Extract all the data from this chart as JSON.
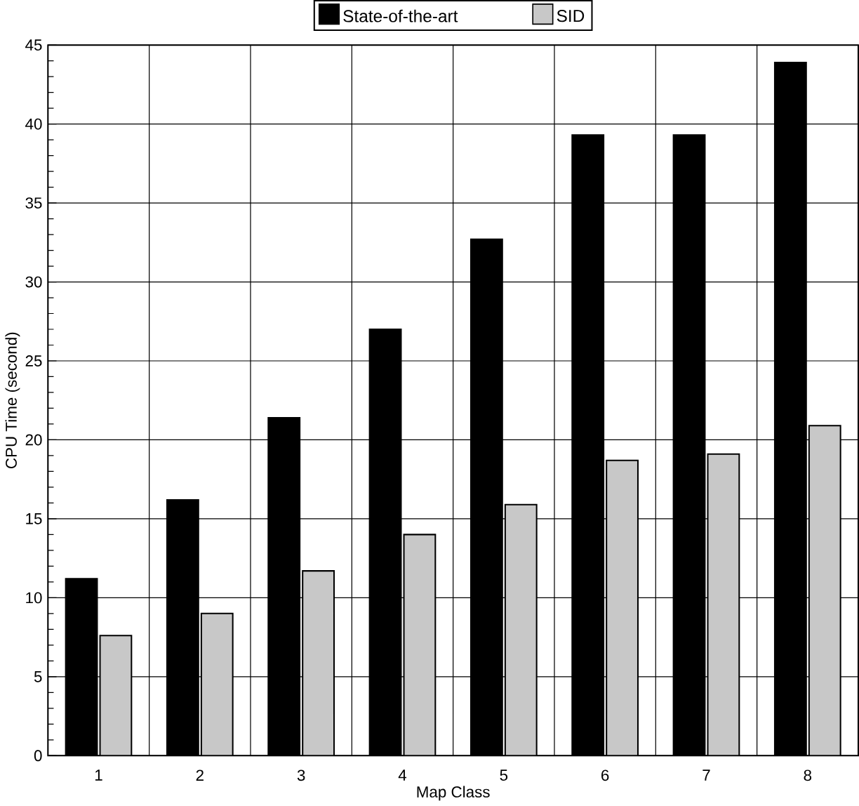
{
  "chart_data": {
    "type": "bar",
    "xlabel": "Map Class",
    "ylabel": "CPU Time (second)",
    "categories": [
      "1",
      "2",
      "3",
      "4",
      "5",
      "6",
      "7",
      "8"
    ],
    "series": [
      {
        "name": "State-of-the-art",
        "color": "#000000",
        "values": [
          11.2,
          16.2,
          21.4,
          27.0,
          32.7,
          39.3,
          39.3,
          43.9
        ]
      },
      {
        "name": "SID",
        "color": "#c8c8c8",
        "values": [
          7.6,
          9.0,
          11.7,
          14.0,
          15.9,
          18.7,
          19.1,
          20.9
        ]
      }
    ],
    "ylim": [
      0,
      45
    ],
    "yticks": [
      0,
      5,
      10,
      15,
      20,
      25,
      30,
      35,
      40,
      45
    ],
    "grid": true,
    "legend": "top"
  }
}
